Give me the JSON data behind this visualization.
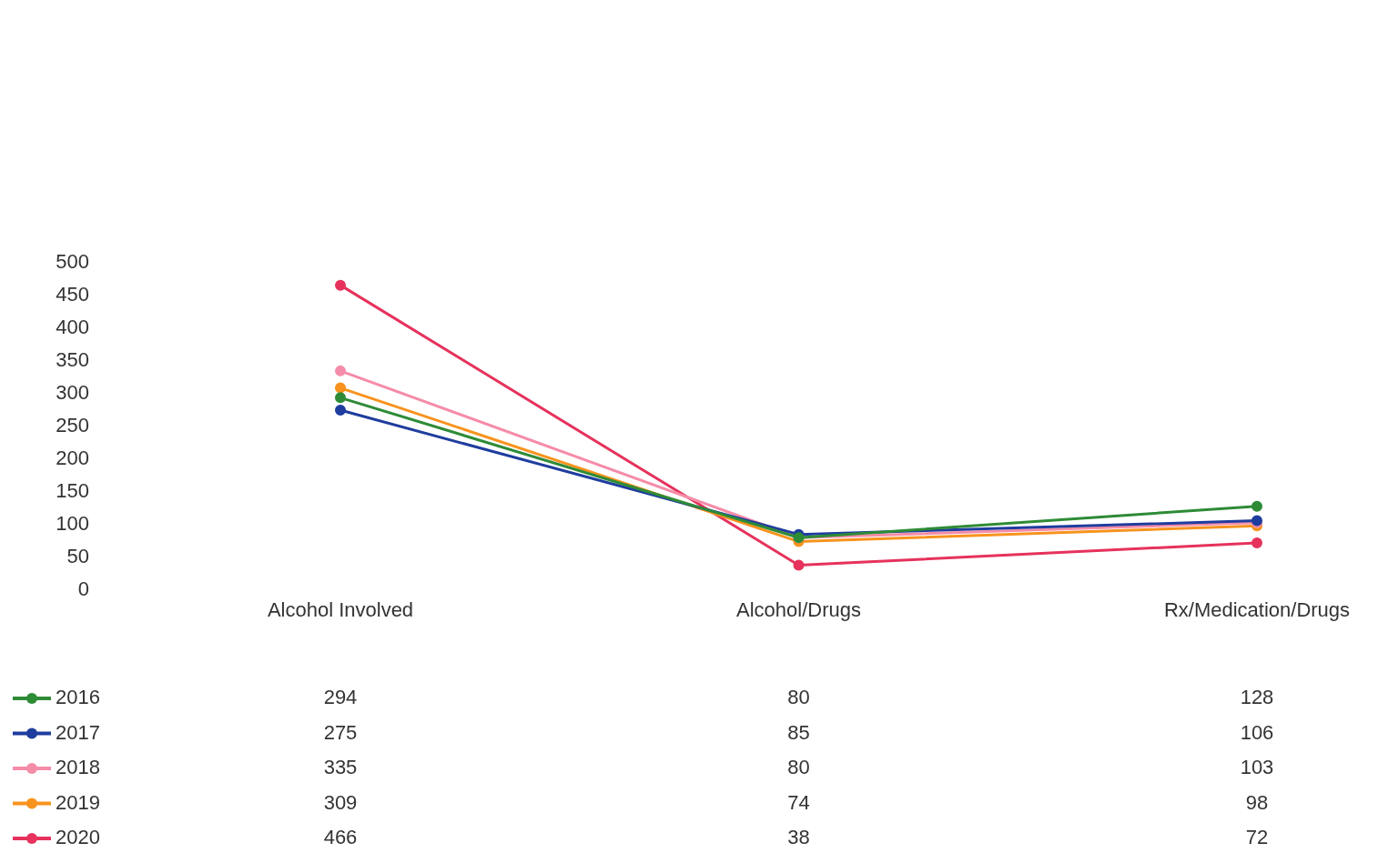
{
  "chart_data": {
    "type": "line",
    "categories": [
      "Alcohol Involved",
      "Alcohol/Drugs",
      "Rx/Medication/Drugs"
    ],
    "series": [
      {
        "name": "2016",
        "color": "#2e8b36",
        "values": [
          294,
          80,
          128
        ]
      },
      {
        "name": "2017",
        "color": "#1f3d9e",
        "values": [
          275,
          85,
          106
        ]
      },
      {
        "name": "2018",
        "color": "#f58ca8",
        "values": [
          335,
          80,
          103
        ]
      },
      {
        "name": "2019",
        "color": "#f7931e",
        "values": [
          309,
          74,
          98
        ]
      },
      {
        "name": "2020",
        "color": "#e6325c",
        "values": [
          466,
          38,
          72
        ]
      }
    ],
    "ylim": [
      0,
      500
    ],
    "yticks": [
      0,
      50,
      100,
      150,
      200,
      250,
      300,
      350,
      400,
      450,
      500
    ],
    "grid": false,
    "marker": "circle",
    "line_style": "solid",
    "data_labels": true,
    "legend": "bottom left"
  }
}
